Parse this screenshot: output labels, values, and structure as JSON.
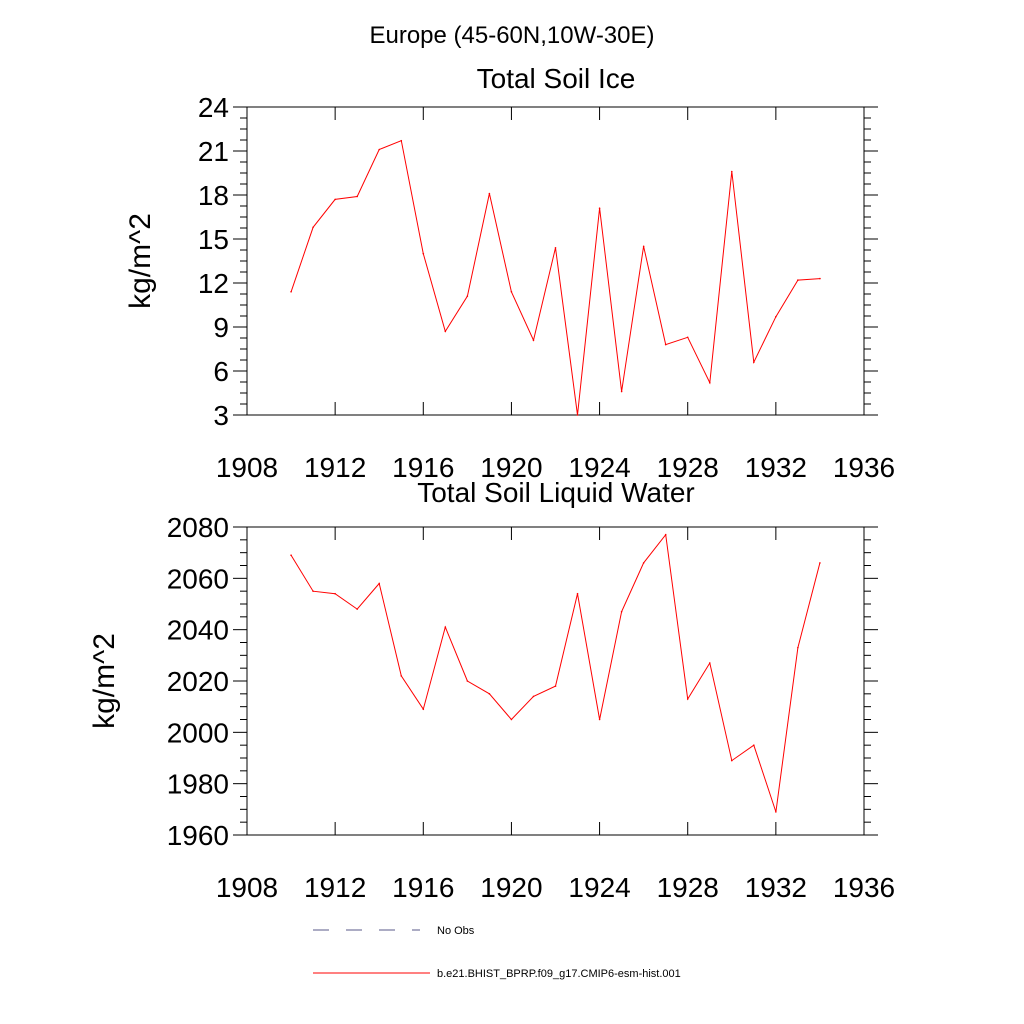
{
  "figure": {
    "suptitle": "Europe (45-60N,10W-30E)"
  },
  "chart_data": [
    {
      "type": "line",
      "title": "Total Soil Ice",
      "xlabel": "",
      "ylabel": "kg/m^2",
      "xlim": [
        1908,
        1936
      ],
      "ylim": [
        3,
        24
      ],
      "xticks": [
        1908,
        1912,
        1916,
        1920,
        1924,
        1928,
        1932,
        1936
      ],
      "yticks": [
        3,
        6,
        9,
        12,
        15,
        18,
        21,
        24
      ],
      "x": [
        1910,
        1911,
        1912,
        1913,
        1914,
        1915,
        1916,
        1917,
        1918,
        1919,
        1920,
        1921,
        1922,
        1923,
        1924,
        1925,
        1926,
        1927,
        1928,
        1929,
        1930,
        1931,
        1932,
        1933,
        1934
      ],
      "series": [
        {
          "name": "b.e21.BHIST_BPRP.f09_g17.CMIP6-esm-hist.001",
          "color": "#ff0000",
          "values": [
            11.4,
            15.8,
            17.7,
            17.9,
            21.1,
            21.7,
            14.0,
            8.7,
            11.1,
            18.1,
            11.4,
            8.1,
            14.4,
            3.0,
            17.1,
            4.6,
            14.5,
            7.8,
            8.3,
            5.2,
            19.6,
            6.6,
            9.7,
            12.2,
            12.3
          ]
        }
      ]
    },
    {
      "type": "line",
      "title": "Total Soil Liquid Water",
      "xlabel": "",
      "ylabel": "kg/m^2",
      "xlim": [
        1908,
        1936
      ],
      "ylim": [
        1960,
        2080
      ],
      "xticks": [
        1908,
        1912,
        1916,
        1920,
        1924,
        1928,
        1932,
        1936
      ],
      "yticks": [
        1960,
        1980,
        2000,
        2020,
        2040,
        2060,
        2080
      ],
      "x": [
        1910,
        1911,
        1912,
        1913,
        1914,
        1915,
        1916,
        1917,
        1918,
        1919,
        1920,
        1921,
        1922,
        1923,
        1924,
        1925,
        1926,
        1927,
        1928,
        1929,
        1930,
        1931,
        1932,
        1933,
        1934
      ],
      "series": [
        {
          "name": "b.e21.BHIST_BPRP.f09_g17.CMIP6-esm-hist.001",
          "color": "#ff0000",
          "values": [
            2069,
            2055,
            2054,
            2048,
            2058,
            2022,
            2009,
            2041,
            2020,
            2015,
            2005,
            2014,
            2018,
            2054,
            2005,
            2047,
            2066,
            2077,
            2013,
            2027,
            1989,
            1995,
            1969,
            2033,
            2066
          ]
        }
      ]
    }
  ],
  "legend": {
    "items": [
      {
        "label": "No Obs",
        "style": "dashed",
        "color": "#5a5a8a"
      },
      {
        "label": "b.e21.BHIST_BPRP.f09_g17.CMIP6-esm-hist.001",
        "style": "solid",
        "color": "#ff0000"
      }
    ]
  }
}
